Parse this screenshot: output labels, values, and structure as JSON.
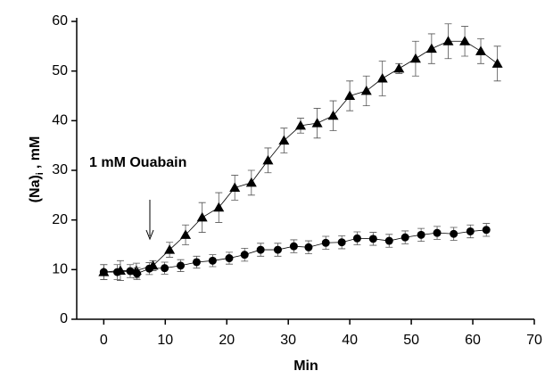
{
  "chart_data": {
    "type": "line",
    "x_label": "Min",
    "y_label": {
      "main": "(Na)",
      "sub": "i",
      "rest": ", mM"
    },
    "annotation": "1 mM Ouabain",
    "xlim": [
      -4.4,
      70
    ],
    "xticks": [
      0,
      10,
      20,
      30,
      40,
      50,
      60,
      70
    ],
    "ylim": [
      0,
      60
    ],
    "yticks": [
      0,
      10,
      20,
      30,
      40,
      50,
      60
    ],
    "series": [
      {
        "marker": "triangle",
        "color": "#000000",
        "x": [
          0,
          2.7,
          5.3,
          8,
          10.7,
          13.3,
          16,
          18.7,
          21.3,
          24,
          26.7,
          29.3,
          32,
          34.7,
          37.3,
          40,
          42.7,
          45.3,
          48,
          50.7,
          53.3,
          56,
          58.7,
          61.3,
          64
        ],
        "values": [
          9.5,
          9.8,
          9.8,
          10.8,
          14,
          17,
          20.5,
          22.5,
          26.5,
          27.5,
          32,
          36,
          39,
          39.5,
          41,
          45,
          46,
          48.5,
          50.5,
          52.5,
          54.5,
          56,
          56,
          54,
          51.5
        ],
        "errors": [
          1.5,
          2,
          1.5,
          1,
          1.5,
          2,
          3,
          3,
          2.5,
          2.5,
          2.5,
          2.5,
          1.5,
          3,
          3,
          3,
          3,
          3.5,
          1,
          3.5,
          3,
          3.5,
          3,
          2.5,
          3.5
        ]
      },
      {
        "marker": "circle",
        "color": "#000000",
        "x": [
          0,
          2.2,
          4.3,
          5.4,
          7.4,
          9.9,
          12.5,
          15.1,
          17.7,
          20.4,
          22.9,
          25.5,
          28.3,
          30.9,
          33.3,
          36.1,
          38.7,
          41.2,
          43.8,
          46.4,
          49,
          51.6,
          54.2,
          56.9,
          59.6,
          62.2
        ],
        "values": [
          9.5,
          9.5,
          9.7,
          9.2,
          10.2,
          10.3,
          10.8,
          11.5,
          11.8,
          12.3,
          13,
          14,
          14,
          14.7,
          14.5,
          15.4,
          15.5,
          16.3,
          16.2,
          15.8,
          16.5,
          17,
          17.4,
          17.2,
          17.7,
          18
        ],
        "errors": [
          1.5,
          1.5,
          1.3,
          1.2,
          1.2,
          1.2,
          1.2,
          1.2,
          1.2,
          1.2,
          1.3,
          1.3,
          1.3,
          1.3,
          1.3,
          1.3,
          1.3,
          1.3,
          1.3,
          1.3,
          1.3,
          1.3,
          1.3,
          1.3,
          1.3,
          1.3
        ]
      }
    ]
  }
}
